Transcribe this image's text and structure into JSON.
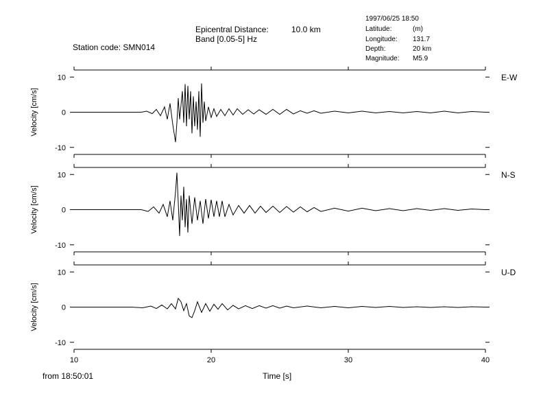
{
  "header": {
    "station_label": "Station code: SMN014",
    "epicentral_label": "Epicentral Distance:",
    "epicentral_value": "10.0 km",
    "band_label": "Band [0.05-5] Hz",
    "datetime": "1997/06/25 18:50",
    "latitude_label": "Latitude:",
    "latitude_value": "(m)",
    "longitude_label": "Longitude:",
    "longitude_value": "131.7",
    "depth_label": "Depth:",
    "depth_value": "20 km",
    "magnitude_label": "Magnitude:",
    "magnitude_value": "M5.9"
  },
  "footer": {
    "from_label": "from 18:50:01",
    "xlabel": "Time [s]"
  },
  "chart_data": [
    {
      "type": "line",
      "component": "E-W",
      "ylabel": "Velocity [cm/s]",
      "xlim": [
        10,
        40
      ],
      "ylim": [
        -12,
        12
      ],
      "xticks": [
        10,
        20,
        30,
        40
      ],
      "yticks": [
        10,
        0,
        -10
      ],
      "x": [
        10,
        14.9,
        15.3,
        15.7,
        16.0,
        16.3,
        16.6,
        16.8,
        17.0,
        17.2,
        17.4,
        17.5,
        17.6,
        17.7,
        17.9,
        18.0,
        18.1,
        18.2,
        18.3,
        18.4,
        18.5,
        18.6,
        18.7,
        18.8,
        18.9,
        19.0,
        19.1,
        19.2,
        19.3,
        19.4,
        19.5,
        19.6,
        19.8,
        20.0,
        20.2,
        20.4,
        20.7,
        21.0,
        21.3,
        21.6,
        21.9,
        22.3,
        22.7,
        23.1,
        23.5,
        24.0,
        24.5,
        25.0,
        25.5,
        26.0,
        26.5,
        27.0,
        27.5,
        28.0,
        29.0,
        30.0,
        31.0,
        32.0,
        33.0,
        34.0,
        35.0,
        36.0,
        37.0,
        38.0,
        39.0,
        40.0
      ],
      "values": [
        0,
        0,
        0.3,
        -0.4,
        0.8,
        -1.0,
        1.5,
        -2.0,
        2.5,
        -3.5,
        -8.5,
        -3.0,
        4.0,
        -2.0,
        6.0,
        -3.0,
        8.0,
        -4.0,
        7.5,
        -2.0,
        6.0,
        -6.0,
        4.5,
        -4.0,
        3.0,
        -5.0,
        6.0,
        -7.0,
        8.2,
        -3.0,
        3.0,
        -2.5,
        1.5,
        -1.5,
        1.0,
        -1.2,
        0.8,
        -1.0,
        1.0,
        -0.8,
        1.0,
        -0.6,
        0.7,
        -0.5,
        0.7,
        -0.6,
        0.8,
        -0.6,
        0.8,
        -0.5,
        0.4,
        -0.3,
        0.4,
        -0.3,
        0.3,
        -0.2,
        0.3,
        -0.2,
        0.2,
        -0.2,
        0.2,
        -0.2,
        0.3,
        -0.2,
        0.2,
        0
      ]
    },
    {
      "type": "line",
      "component": "N-S",
      "ylabel": "Velocity [cm/s]",
      "xlim": [
        10,
        40
      ],
      "ylim": [
        -12,
        12
      ],
      "xticks": [
        10,
        20,
        30,
        40
      ],
      "yticks": [
        10,
        0,
        -10
      ],
      "x": [
        10,
        14.9,
        15.4,
        15.8,
        16.2,
        16.5,
        16.8,
        17.0,
        17.2,
        17.4,
        17.5,
        17.6,
        17.7,
        17.8,
        17.9,
        18.0,
        18.1,
        18.2,
        18.3,
        18.4,
        18.6,
        18.8,
        19.0,
        19.2,
        19.4,
        19.6,
        19.8,
        20.0,
        20.2,
        20.4,
        20.6,
        20.8,
        21.0,
        21.3,
        21.6,
        22.0,
        22.4,
        22.8,
        23.2,
        23.6,
        24.0,
        24.5,
        25.0,
        25.5,
        26.0,
        26.5,
        27.0,
        27.5,
        28.0,
        29.0,
        30.0,
        31.0,
        32.0,
        33.0,
        34.0,
        35.0,
        36.0,
        37.0,
        38.0,
        39.0,
        40.0
      ],
      "values": [
        0,
        0,
        -0.5,
        0.8,
        -1.0,
        1.5,
        -2.0,
        2.5,
        -3.0,
        5.0,
        10.5,
        2.0,
        -7.5,
        4.0,
        -3.0,
        6.5,
        -5.0,
        3.0,
        -6.5,
        4.0,
        -4.0,
        3.5,
        -3.0,
        2.5,
        -4.0,
        3.0,
        -2.5,
        2.8,
        -2.0,
        2.5,
        -2.0,
        2.5,
        -2.0,
        1.5,
        -1.5,
        1.2,
        -1.0,
        1.2,
        -1.0,
        1.0,
        -0.8,
        1.0,
        -0.8,
        0.9,
        -0.7,
        0.8,
        -0.6,
        0.6,
        -0.5,
        0.4,
        -0.4,
        0.4,
        -0.3,
        0.3,
        -0.3,
        0.3,
        -0.2,
        0.3,
        -0.2,
        0.2,
        0
      ]
    },
    {
      "type": "line",
      "component": "U-D",
      "ylabel": "Velocity [cm/s]",
      "xlim": [
        10,
        40
      ],
      "ylim": [
        -12,
        12
      ],
      "xticks": [
        10,
        20,
        30,
        40
      ],
      "yticks": [
        10,
        0,
        -10
      ],
      "x": [
        10,
        14.2,
        15.0,
        15.6,
        16.0,
        16.4,
        16.8,
        17.1,
        17.4,
        17.6,
        17.8,
        18.0,
        18.2,
        18.4,
        18.6,
        18.8,
        19.0,
        19.3,
        19.6,
        19.9,
        20.2,
        20.5,
        20.8,
        21.2,
        21.6,
        22.0,
        22.5,
        23.0,
        23.5,
        24.0,
        24.5,
        25.0,
        25.5,
        26.0,
        27.0,
        28.0,
        29.0,
        30.0,
        31.0,
        32.0,
        33.0,
        34.0,
        35.0,
        36.0,
        37.0,
        38.0,
        39.0,
        40.0
      ],
      "values": [
        0,
        0,
        -0.2,
        0.3,
        -0.4,
        0.6,
        -0.5,
        1.0,
        -0.5,
        2.5,
        1.5,
        -1.0,
        1.0,
        -2.5,
        -3.0,
        -1.0,
        1.5,
        -1.5,
        1.0,
        -1.2,
        0.8,
        -0.6,
        1.0,
        -0.8,
        0.5,
        -0.5,
        0.4,
        -0.4,
        0.4,
        -0.3,
        0.4,
        -0.3,
        0.3,
        -0.2,
        0.3,
        -0.2,
        0.2,
        -0.2,
        0.2,
        -0.1,
        0.2,
        -0.1,
        0.1,
        -0.1,
        0.1,
        -0.1,
        0.1,
        0
      ]
    }
  ]
}
